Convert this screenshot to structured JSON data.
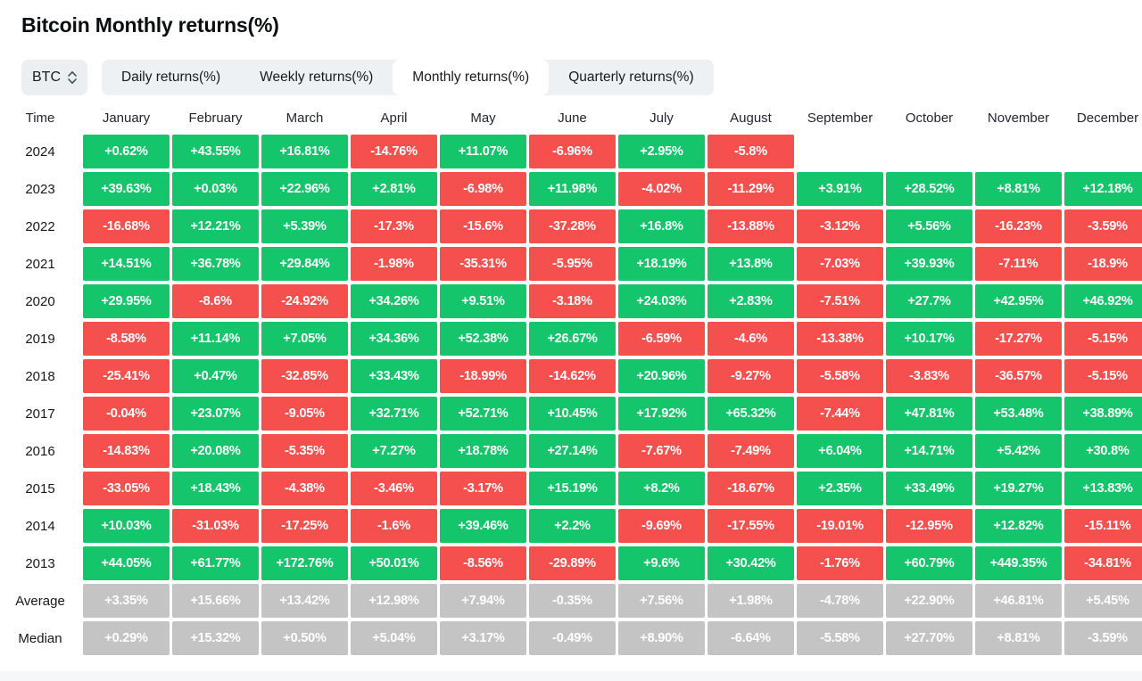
{
  "page": {
    "title": "Bitcoin Monthly returns(%)"
  },
  "controls": {
    "asset_selector": {
      "label": "BTC",
      "icon": "updown-chevron-icon"
    },
    "tabs": [
      {
        "label": "Daily returns(%)",
        "active": false
      },
      {
        "label": "Weekly returns(%)",
        "active": false
      },
      {
        "label": "Monthly returns(%)",
        "active": true
      },
      {
        "label": "Quarterly returns(%)",
        "active": false
      }
    ]
  },
  "chart_data": {
    "type": "heatmap",
    "title": "Bitcoin Monthly returns(%)",
    "legend_position": "none",
    "grid": false,
    "columns": [
      "Time",
      "January",
      "February",
      "March",
      "April",
      "May",
      "June",
      "July",
      "August",
      "September",
      "October",
      "November",
      "December"
    ],
    "rows": [
      {
        "label": "2024",
        "style": "signed",
        "values": [
          "+0.62%",
          "+43.55%",
          "+16.81%",
          "-14.76%",
          "+11.07%",
          "-6.96%",
          "+2.95%",
          "-5.8%",
          "",
          "",
          "",
          ""
        ]
      },
      {
        "label": "2023",
        "style": "signed",
        "values": [
          "+39.63%",
          "+0.03%",
          "+22.96%",
          "+2.81%",
          "-6.98%",
          "+11.98%",
          "-4.02%",
          "-11.29%",
          "+3.91%",
          "+28.52%",
          "+8.81%",
          "+12.18%"
        ]
      },
      {
        "label": "2022",
        "style": "signed",
        "values": [
          "-16.68%",
          "+12.21%",
          "+5.39%",
          "-17.3%",
          "-15.6%",
          "-37.28%",
          "+16.8%",
          "-13.88%",
          "-3.12%",
          "+5.56%",
          "-16.23%",
          "-3.59%"
        ]
      },
      {
        "label": "2021",
        "style": "signed",
        "values": [
          "+14.51%",
          "+36.78%",
          "+29.84%",
          "-1.98%",
          "-35.31%",
          "-5.95%",
          "+18.19%",
          "+13.8%",
          "-7.03%",
          "+39.93%",
          "-7.11%",
          "-18.9%"
        ]
      },
      {
        "label": "2020",
        "style": "signed",
        "values": [
          "+29.95%",
          "-8.6%",
          "-24.92%",
          "+34.26%",
          "+9.51%",
          "-3.18%",
          "+24.03%",
          "+2.83%",
          "-7.51%",
          "+27.7%",
          "+42.95%",
          "+46.92%"
        ]
      },
      {
        "label": "2019",
        "style": "signed",
        "values": [
          "-8.58%",
          "+11.14%",
          "+7.05%",
          "+34.36%",
          "+52.38%",
          "+26.67%",
          "-6.59%",
          "-4.6%",
          "-13.38%",
          "+10.17%",
          "-17.27%",
          "-5.15%"
        ]
      },
      {
        "label": "2018",
        "style": "signed",
        "values": [
          "-25.41%",
          "+0.47%",
          "-32.85%",
          "+33.43%",
          "-18.99%",
          "-14.62%",
          "+20.96%",
          "-9.27%",
          "-5.58%",
          "-3.83%",
          "-36.57%",
          "-5.15%"
        ]
      },
      {
        "label": "2017",
        "style": "signed",
        "values": [
          "-0.04%",
          "+23.07%",
          "-9.05%",
          "+32.71%",
          "+52.71%",
          "+10.45%",
          "+17.92%",
          "+65.32%",
          "-7.44%",
          "+47.81%",
          "+53.48%",
          "+38.89%"
        ]
      },
      {
        "label": "2016",
        "style": "signed",
        "values": [
          "-14.83%",
          "+20.08%",
          "-5.35%",
          "+7.27%",
          "+18.78%",
          "+27.14%",
          "-7.67%",
          "-7.49%",
          "+6.04%",
          "+14.71%",
          "+5.42%",
          "+30.8%"
        ]
      },
      {
        "label": "2015",
        "style": "signed",
        "values": [
          "-33.05%",
          "+18.43%",
          "-4.38%",
          "-3.46%",
          "-3.17%",
          "+15.19%",
          "+8.2%",
          "-18.67%",
          "+2.35%",
          "+33.49%",
          "+19.27%",
          "+13.83%"
        ]
      },
      {
        "label": "2014",
        "style": "signed",
        "values": [
          "+10.03%",
          "-31.03%",
          "-17.25%",
          "-1.6%",
          "+39.46%",
          "+2.2%",
          "-9.69%",
          "-17.55%",
          "-19.01%",
          "-12.95%",
          "+12.82%",
          "-15.11%"
        ]
      },
      {
        "label": "2013",
        "style": "signed",
        "values": [
          "+44.05%",
          "+61.77%",
          "+172.76%",
          "+50.01%",
          "-8.56%",
          "-29.89%",
          "+9.6%",
          "+30.42%",
          "-1.76%",
          "+60.79%",
          "+449.35%",
          "-34.81%"
        ]
      },
      {
        "label": "Average",
        "style": "gray",
        "values": [
          "+3.35%",
          "+15.66%",
          "+13.42%",
          "+12.98%",
          "+7.94%",
          "-0.35%",
          "+7.56%",
          "+1.98%",
          "-4.78%",
          "+22.90%",
          "+46.81%",
          "+5.45%"
        ]
      },
      {
        "label": "Median",
        "style": "gray",
        "values": [
          "+0.29%",
          "+15.32%",
          "+0.50%",
          "+5.04%",
          "+3.17%",
          "-0.49%",
          "+8.90%",
          "-6.64%",
          "-5.58%",
          "+27.70%",
          "+8.81%",
          "-3.59%"
        ]
      }
    ],
    "colors": {
      "positive": "#15C56B",
      "negative": "#F6504E",
      "neutral": "#C4C4C4"
    }
  }
}
